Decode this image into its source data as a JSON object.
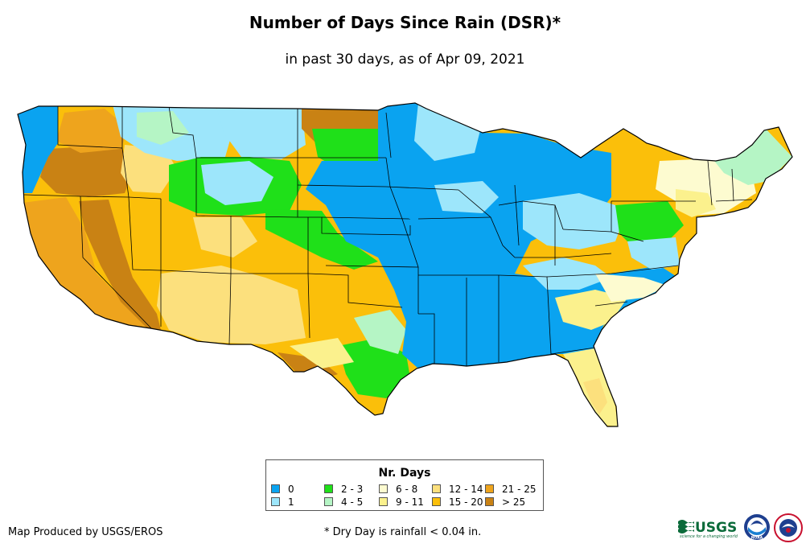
{
  "title": "Number of Days Since Rain (DSR)*",
  "subtitle": "in past 30 days, as of Apr 09, 2021",
  "legend": {
    "title": "Nr. Days",
    "items": [
      {
        "label": "0",
        "color": "#0aa3f0"
      },
      {
        "label": "1",
        "color": "#9de6fb"
      },
      {
        "label": "2 - 3",
        "color": "#1fe019"
      },
      {
        "label": "4 - 5",
        "color": "#b5f5c5"
      },
      {
        "label": "6 - 8",
        "color": "#fdfbd0"
      },
      {
        "label": "9 - 11",
        "color": "#fbf18d"
      },
      {
        "label": "12 - 14",
        "color": "#fce07d"
      },
      {
        "label": "15 - 20",
        "color": "#fbbf0a"
      },
      {
        "label": "21 - 25",
        "color": "#eea41d"
      },
      {
        "label": "> 25",
        "color": "#c98214"
      }
    ]
  },
  "credit": "Map Produced by USGS/EROS",
  "footnote": "* Dry Day is rainfall < 0.04 in.",
  "logos": {
    "usgs": "USGS",
    "usgs_tagline": "science for a changing world",
    "noaa": "NOAA"
  }
}
